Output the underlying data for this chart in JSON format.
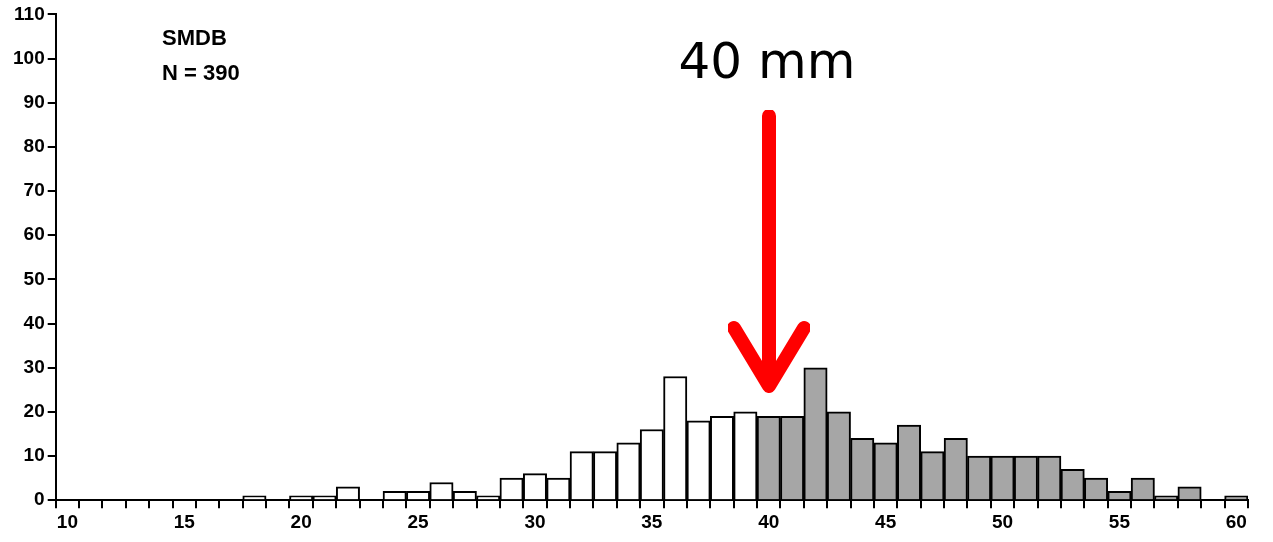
{
  "chart_data": {
    "type": "bar",
    "categories": [
      "10",
      null,
      null,
      null,
      null,
      "15",
      null,
      null,
      null,
      null,
      "20",
      null,
      null,
      null,
      null,
      "25",
      null,
      null,
      null,
      null,
      "30",
      null,
      null,
      null,
      null,
      "35",
      null,
      null,
      null,
      null,
      "40",
      null,
      null,
      null,
      null,
      "45",
      null,
      null,
      null,
      null,
      "50",
      null,
      null,
      null,
      null,
      "55",
      null,
      null,
      null,
      null,
      "60"
    ],
    "values": [
      0,
      0,
      0,
      0,
      0,
      0,
      0,
      0,
      1,
      0,
      1,
      1,
      3,
      0,
      2,
      2,
      4,
      2,
      1,
      5,
      6,
      5,
      11,
      11,
      13,
      16,
      28,
      18,
      19,
      20,
      19,
      19,
      30,
      20,
      14,
      13,
      17,
      11,
      14,
      10,
      10,
      10,
      10,
      7,
      5,
      2,
      5,
      1,
      3,
      0,
      1
    ],
    "colors": [
      "#ffffff",
      "#ffffff",
      "#ffffff",
      "#ffffff",
      "#ffffff",
      "#ffffff",
      "#ffffff",
      "#ffffff",
      "#ffffff",
      "#ffffff",
      "#ffffff",
      "#ffffff",
      "#ffffff",
      "#ffffff",
      "#ffffff",
      "#ffffff",
      "#ffffff",
      "#ffffff",
      "#ffffff",
      "#ffffff",
      "#ffffff",
      "#ffffff",
      "#ffffff",
      "#ffffff",
      "#ffffff",
      "#ffffff",
      "#ffffff",
      "#ffffff",
      "#ffffff",
      "#ffffff",
      "#a6a6a6",
      "#a6a6a6",
      "#a6a6a6",
      "#a6a6a6",
      "#a6a6a6",
      "#a6a6a6",
      "#a6a6a6",
      "#a6a6a6",
      "#a6a6a6",
      "#a6a6a6",
      "#a6a6a6",
      "#a6a6a6",
      "#a6a6a6",
      "#a6a6a6",
      "#a6a6a6",
      "#a6a6a6",
      "#a6a6a6",
      "#a6a6a6",
      "#a6a6a6",
      "#a6a6a6",
      "#a6a6a6"
    ],
    "ylim": [
      0,
      110
    ],
    "yticks": [
      0,
      10,
      20,
      30,
      40,
      50,
      60,
      70,
      80,
      90,
      100,
      110
    ],
    "annotations": [
      "SMDB",
      "N = 390",
      "40 mm"
    ]
  }
}
